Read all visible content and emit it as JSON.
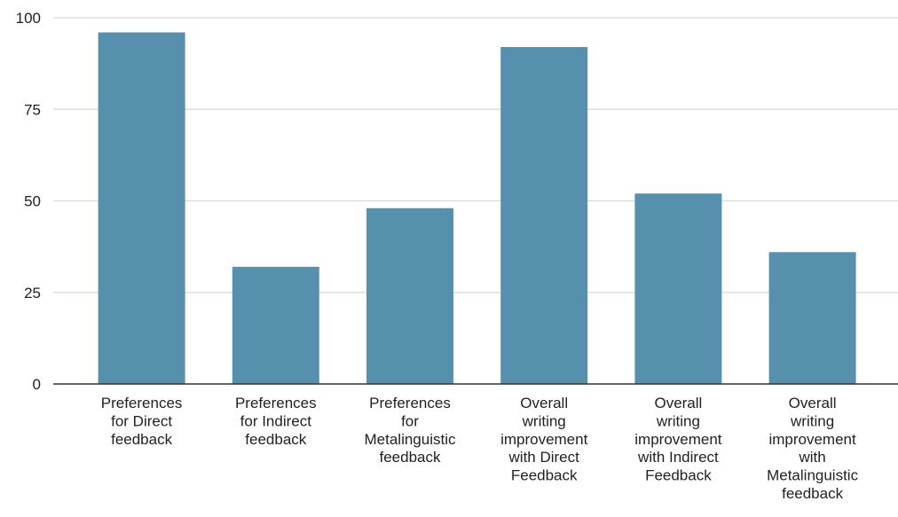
{
  "chart_data": {
    "type": "bar",
    "categories": [
      [
        "Preferences",
        "for Direct",
        "feedback"
      ],
      [
        "Preferences",
        "for Indirect",
        "feedback"
      ],
      [
        "Preferences",
        "for",
        "Metalinguistic",
        "feedback"
      ],
      [
        "Overall",
        "writing",
        "improvement",
        "with Direct",
        "Feedback"
      ],
      [
        "Overall",
        "writing",
        "improvement",
        "with Indirect",
        "Feedback"
      ],
      [
        "Overall",
        "writing",
        "improvement",
        "with",
        "Metalinguistic",
        "feedback"
      ]
    ],
    "values": [
      96,
      32,
      48,
      92,
      52,
      36
    ],
    "title": "",
    "xlabel": "",
    "ylabel": "",
    "ylim": [
      0,
      100
    ],
    "yticks": [
      "0",
      "25",
      "50",
      "75",
      "100"
    ],
    "grid": true,
    "legend": "none",
    "bar_color": "#5690ad"
  }
}
